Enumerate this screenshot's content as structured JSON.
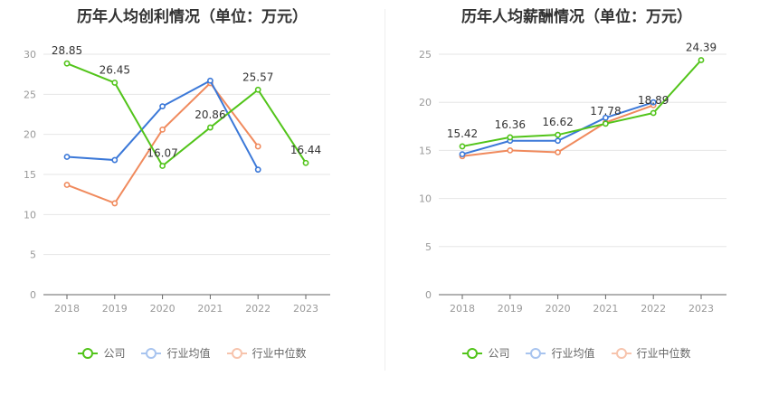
{
  "colors": {
    "company": "#52c41a",
    "avg": "#3b78d8",
    "median": "#f08a5d",
    "grid": "#e6e6e6",
    "axis": "#999999"
  },
  "chart_data": [
    {
      "type": "line",
      "title": "历年人均创利情况（单位：万元）",
      "categories": [
        "2018",
        "2019",
        "2020",
        "2021",
        "2022",
        "2023"
      ],
      "ylim": [
        0,
        30
      ],
      "yticks": [
        0,
        5,
        10,
        15,
        20,
        25,
        30
      ],
      "grid": true,
      "legend": "bottom",
      "series": [
        {
          "name": "公司",
          "key": "company",
          "values": [
            28.85,
            26.45,
            16.07,
            20.86,
            25.57,
            16.44
          ],
          "labels": [
            "28.85",
            "26.45",
            "16.07",
            "20.86",
            "25.57",
            "16.44"
          ]
        },
        {
          "name": "行业均值",
          "key": "avg",
          "values": [
            17.2,
            16.8,
            23.5,
            26.7,
            15.6,
            null
          ]
        },
        {
          "name": "行业中位数",
          "key": "median",
          "values": [
            13.7,
            11.4,
            20.6,
            26.4,
            18.5,
            null
          ]
        }
      ]
    },
    {
      "type": "line",
      "title": "历年人均薪酬情况（单位：万元）",
      "categories": [
        "2018",
        "2019",
        "2020",
        "2021",
        "2022",
        "2023"
      ],
      "ylim": [
        0,
        25
      ],
      "yticks": [
        0,
        5,
        10,
        15,
        20,
        25
      ],
      "grid": true,
      "legend": "bottom",
      "series": [
        {
          "name": "公司",
          "key": "company",
          "values": [
            15.42,
            16.36,
            16.62,
            17.78,
            18.89,
            24.39
          ],
          "labels": [
            "15.42",
            "16.36",
            "16.62",
            "17.78",
            "18.89",
            "24.39"
          ]
        },
        {
          "name": "行业均值",
          "key": "avg",
          "values": [
            14.6,
            16.0,
            16.0,
            18.4,
            20.0,
            null
          ]
        },
        {
          "name": "行业中位数",
          "key": "median",
          "values": [
            14.4,
            15.0,
            14.8,
            17.9,
            19.7,
            null
          ]
        }
      ]
    }
  ],
  "legend": [
    {
      "label": "公司",
      "key": "company"
    },
    {
      "label": "行业均值",
      "key": "avg"
    },
    {
      "label": "行业中位数",
      "key": "median"
    }
  ]
}
